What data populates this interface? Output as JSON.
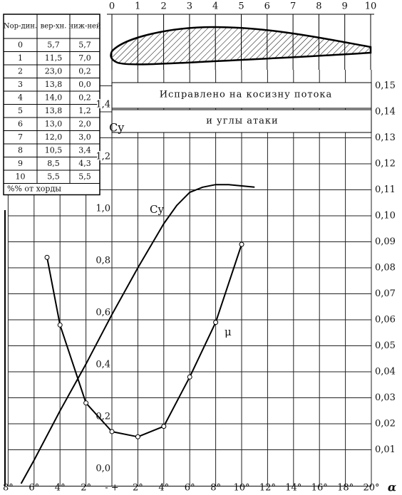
{
  "table": {
    "header": [
      "Nор-дин.",
      "вер-хн.",
      "ниж-ней"
    ],
    "rows": [
      [
        "0",
        "5,7",
        "5,7"
      ],
      [
        "1",
        "11,5",
        "7,0"
      ],
      [
        "2",
        "23,0",
        "0,2"
      ],
      [
        "3",
        "13,8",
        "0,0"
      ],
      [
        "4",
        "14,0",
        "0,2"
      ],
      [
        "5",
        "13,8",
        "1,2"
      ],
      [
        "6",
        "13,0",
        "2,0"
      ],
      [
        "7",
        "12,0",
        "3,0"
      ],
      [
        "8",
        "10,5",
        "3,4"
      ],
      [
        "9",
        "8,5",
        "4,3"
      ],
      [
        "10",
        "5,5",
        "5,5"
      ]
    ],
    "footnote": "%% от хорды"
  },
  "chart_data": [
    {
      "type": "profile",
      "xlim": [
        0,
        10
      ],
      "xticks": [
        0,
        1,
        2,
        3,
        4,
        5,
        6,
        7,
        8,
        9,
        10
      ]
    },
    {
      "type": "line",
      "annotations": [
        "Исправлено на косизну потока",
        "и углы атаки"
      ],
      "ylabel": "Cy",
      "xlabel": "α",
      "xlim": [
        -8,
        20
      ],
      "xticks": [
        {
          "value": -8,
          "label": "8°"
        },
        {
          "value": -6,
          "label": "6°"
        },
        {
          "value": -4,
          "label": "4°"
        },
        {
          "value": -2,
          "label": "2°"
        },
        {
          "value": 0,
          "label": "- +"
        },
        {
          "value": 2,
          "label": "2°"
        },
        {
          "value": 4,
          "label": "4°"
        },
        {
          "value": 6,
          "label": "6°"
        },
        {
          "value": 8,
          "label": "8°"
        },
        {
          "value": 10,
          "label": "10°"
        },
        {
          "value": 12,
          "label": "12°"
        },
        {
          "value": 14,
          "label": "14°"
        },
        {
          "value": 16,
          "label": "16°"
        },
        {
          "value": 18,
          "label": "18°"
        },
        {
          "value": 20,
          "label": "20°"
        }
      ],
      "ylim": [
        -0.04,
        1.5
      ],
      "yticks": [
        {
          "value": 0,
          "label": "0,0"
        },
        {
          "value": 0.2,
          "label": "0,2"
        },
        {
          "value": 0.4,
          "label": "0,4"
        },
        {
          "value": 0.6,
          "label": "0,6"
        },
        {
          "value": 0.8,
          "label": "0,8"
        },
        {
          "value": 1.0,
          "label": "1,0"
        },
        {
          "value": 1.2,
          "label": "1,2"
        },
        {
          "value": 1.4,
          "label": "1,4"
        }
      ],
      "y2lim": [
        -0.004,
        0.15
      ],
      "y2ticks": [
        {
          "value": 0.01,
          "label": "0,01"
        },
        {
          "value": 0.02,
          "label": "0,02"
        },
        {
          "value": 0.03,
          "label": "0,03"
        },
        {
          "value": 0.04,
          "label": "0,04"
        },
        {
          "value": 0.05,
          "label": "0,05"
        },
        {
          "value": 0.06,
          "label": "0,06"
        },
        {
          "value": 0.07,
          "label": "0,07"
        },
        {
          "value": 0.08,
          "label": "0,08"
        },
        {
          "value": 0.09,
          "label": "0,09"
        },
        {
          "value": 0.1,
          "label": "0,10"
        },
        {
          "value": 0.11,
          "label": "0,11"
        },
        {
          "value": 0.12,
          "label": "0,12"
        },
        {
          "value": 0.13,
          "label": "0,13"
        },
        {
          "value": 0.14,
          "label": "0,14"
        },
        {
          "value": 0.15,
          "label": "0,15"
        }
      ],
      "grid": true,
      "series": [
        {
          "name": "Cy",
          "color": "#000",
          "x": [
            -7,
            -6,
            -4,
            -2,
            0,
            2,
            4,
            5,
            6,
            7,
            8,
            9,
            10,
            11
          ],
          "values": [
            -0.03,
            0.06,
            0.25,
            0.43,
            0.62,
            0.8,
            0.97,
            1.04,
            1.09,
            1.11,
            1.12,
            1.12,
            1.115,
            1.11
          ]
        },
        {
          "name": "μ",
          "color": "#000",
          "axis": "y2",
          "x": [
            -5,
            -4,
            -2,
            0,
            2,
            4,
            6,
            8,
            10
          ],
          "values": [
            0.084,
            0.058,
            0.028,
            0.017,
            0.015,
            0.019,
            0.038,
            0.059,
            0.089
          ]
        }
      ]
    }
  ]
}
